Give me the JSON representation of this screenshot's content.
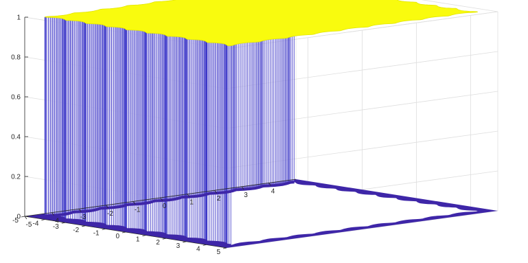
{
  "chart_data": {
    "type": "surface",
    "title": "",
    "xlabel": "",
    "ylabel": "",
    "zlabel": "",
    "grid": true,
    "colormap": "parula",
    "xlim": [
      -5,
      5
    ],
    "ylim": [
      -5,
      5
    ],
    "zlim": [
      0,
      1
    ],
    "x_ticks": [
      "-5",
      "-4",
      "-3",
      "-2",
      "-1",
      "0",
      "1",
      "2",
      "3",
      "4"
    ],
    "y_ticks": [
      "5",
      "4",
      "3",
      "2",
      "1",
      "0",
      "-1",
      "-2",
      "-3",
      "-4",
      "-5"
    ],
    "z_ticks": [
      "0",
      "0.2",
      "0.4",
      "0.6",
      "0.8",
      "1"
    ],
    "description_values": {
      "low_level": 0,
      "high_level": 1,
      "plateau_half_width": 4.6,
      "edge_scallop_period": 1
    },
    "colors": {
      "top": "#f9fb0e",
      "top_edge": "#e2e600",
      "walls": "#3d38c8",
      "floor": "#3e26a8",
      "grid": "#dedede",
      "axis": "#262626"
    }
  }
}
